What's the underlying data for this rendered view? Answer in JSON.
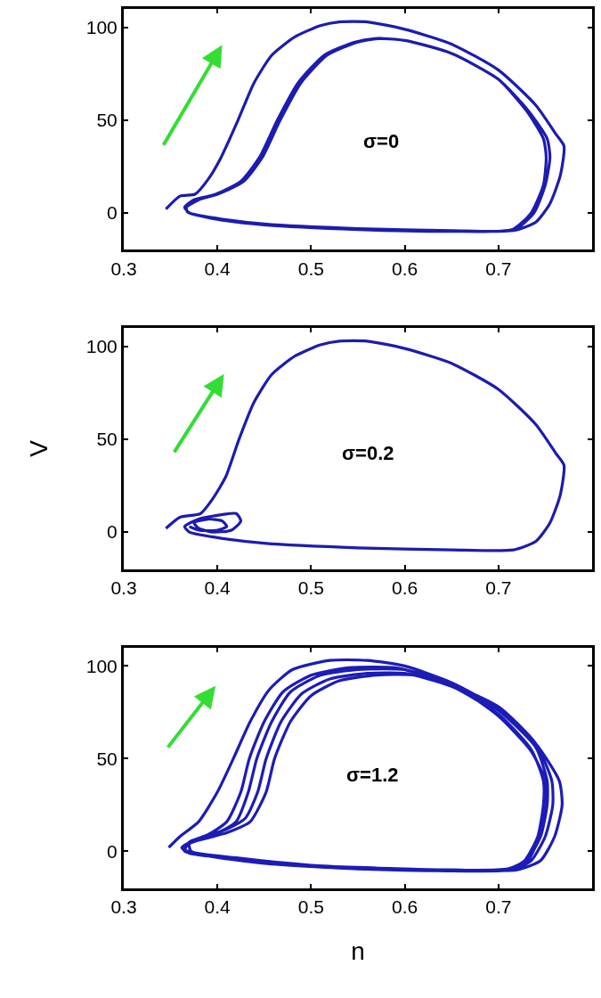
{
  "chart_data": [
    {
      "type": "line",
      "annotations": [
        "σ=0"
      ],
      "xlim": [
        0.3,
        0.8
      ],
      "ylim": [
        -20,
        110
      ],
      "xticks": [
        0.3,
        0.4,
        0.5,
        0.6,
        0.7
      ],
      "yticks": [
        0,
        50,
        100
      ],
      "marker": "none",
      "line_style": "solid",
      "series": [
        {
          "color": "#1c1cb0",
          "x": [
            0.345,
            0.36,
            0.376,
            0.39,
            0.404,
            0.422,
            0.439,
            0.458,
            0.483,
            0.51,
            0.53,
            0.56,
            0.6,
            0.65,
            0.7,
            0.74,
            0.762,
            0.77,
            0.766,
            0.755,
            0.74,
            0.716,
            0.65,
            0.55,
            0.45,
            0.4,
            0.37,
            0.365,
            0.375,
            0.398,
            0.425,
            0.445,
            0.464,
            0.486,
            0.514,
            0.546,
            0.568,
            0.6,
            0.65,
            0.7,
            0.73,
            0.748,
            0.751,
            0.748,
            0.735,
            0.715,
            0.65,
            0.55,
            0.45,
            0.4,
            0.368,
            0.367,
            0.38,
            0.4,
            0.428,
            0.448,
            0.467,
            0.489,
            0.517,
            0.549,
            0.571,
            0.6,
            0.65,
            0.7,
            0.732,
            0.752,
            0.755,
            0.75,
            0.738,
            0.718,
            0.7
          ],
          "values": [
            2,
            9,
            10,
            18,
            30,
            50,
            70,
            85,
            95,
            101,
            103,
            103,
            99,
            91,
            77,
            58,
            42,
            36,
            20,
            5,
            -5,
            -9.6,
            -9.6,
            -8.5,
            -6,
            -3,
            0,
            3,
            7,
            10,
            17,
            30,
            50,
            70,
            85,
            92,
            94,
            93,
            86,
            72,
            55,
            40,
            30,
            15,
            0,
            -9,
            -10,
            -9,
            -6.5,
            -3.5,
            0.5,
            3,
            7,
            10,
            17,
            30,
            50,
            70,
            85,
            92,
            94,
            93,
            86,
            72,
            55,
            40,
            30,
            15,
            0,
            -9,
            -10
          ]
        }
      ]
    },
    {
      "type": "line",
      "annotations": [
        "σ=0.2"
      ],
      "ylabel": "V",
      "xlim": [
        0.3,
        0.8
      ],
      "ylim": [
        -20,
        110
      ],
      "xticks": [
        0.3,
        0.4,
        0.5,
        0.6,
        0.7
      ],
      "yticks": [
        0,
        50,
        100
      ],
      "marker": "none",
      "line_style": "solid",
      "series": [
        {
          "color": "#1c1cb0",
          "x": [
            0.345,
            0.36,
            0.382,
            0.395,
            0.409,
            0.423,
            0.439,
            0.458,
            0.483,
            0.51,
            0.53,
            0.56,
            0.6,
            0.65,
            0.7,
            0.74,
            0.762,
            0.77,
            0.766,
            0.755,
            0.74,
            0.716,
            0.65,
            0.55,
            0.45,
            0.4,
            0.37,
            0.365,
            0.38,
            0.4,
            0.42,
            0.425,
            0.415,
            0.395,
            0.38,
            0.375,
            0.39,
            0.405,
            0.41,
            0.4,
            0.38,
            0.37
          ],
          "values": [
            2,
            8,
            10,
            18,
            30,
            50,
            70,
            85,
            95,
            101,
            103,
            103,
            99,
            91,
            77,
            58,
            42,
            36,
            20,
            5,
            -5,
            -9.6,
            -9.6,
            -8.5,
            -6,
            -3,
            0,
            3,
            7,
            9,
            10,
            6,
            1,
            0,
            2,
            5,
            7,
            6,
            3,
            1,
            1,
            3
          ]
        }
      ]
    },
    {
      "type": "line",
      "annotations": [
        "σ=1.2"
      ],
      "xlabel": "n",
      "xlim": [
        0.3,
        0.8
      ],
      "ylim": [
        -20,
        110
      ],
      "xticks": [
        0.3,
        0.4,
        0.5,
        0.6,
        0.7
      ],
      "yticks": [
        0,
        50,
        100
      ],
      "marker": "none",
      "line_style": "solid",
      "series": [
        {
          "color": "#1c1cb8",
          "x": [
            0.348,
            0.36,
            0.38,
            0.4,
            0.417,
            0.435,
            0.455,
            0.48,
            0.52,
            0.56,
            0.6,
            0.65,
            0.7,
            0.74,
            0.765,
            0.768,
            0.76,
            0.745,
            0.72,
            0.65,
            0.55,
            0.45,
            0.39,
            0.365,
            0.37,
            0.39,
            0.41,
            0.425,
            0.434,
            0.45,
            0.47,
            0.5,
            0.54,
            0.59,
            0.64,
            0.7,
            0.74,
            0.757,
            0.758,
            0.75,
            0.735,
            0.715,
            0.65,
            0.55,
            0.45,
            0.39,
            0.365,
            0.37,
            0.4,
            0.42,
            0.433,
            0.442,
            0.458,
            0.478,
            0.51,
            0.55,
            0.6,
            0.65,
            0.7,
            0.74,
            0.752,
            0.752,
            0.745,
            0.73,
            0.71,
            0.6,
            0.5,
            0.42,
            0.37,
            0.362,
            0.375,
            0.41,
            0.43,
            0.443,
            0.452,
            0.468,
            0.49,
            0.52,
            0.56,
            0.6,
            0.65,
            0.7,
            0.735,
            0.748,
            0.748,
            0.742,
            0.728,
            0.71,
            0.6,
            0.5,
            0.42,
            0.372,
            0.37,
            0.41,
            0.435,
            0.452,
            0.461,
            0.478,
            0.5,
            0.53,
            0.57,
            0.61,
            0.66,
            0.7,
            0.735,
            0.75,
            0.75,
            0.744,
            0.73,
            0.712
          ],
          "values": [
            2,
            8,
            16,
            32,
            50,
            70,
            87,
            98,
            103,
            103,
            100,
            91,
            77,
            58,
            38,
            25,
            8,
            -5,
            -10,
            -10,
            -9,
            -6,
            -2,
            1,
            5,
            9,
            16,
            32,
            50,
            70,
            86,
            95,
            99,
            99,
            92,
            78,
            58,
            38,
            25,
            8,
            -5,
            -10,
            -10.5,
            -9.5,
            -6.5,
            -2.5,
            0,
            5,
            10,
            16,
            32,
            50,
            70,
            86,
            95,
            98,
            98,
            90,
            76,
            56,
            38,
            25,
            8,
            -5,
            -10,
            -10,
            -8,
            -4,
            -1,
            2,
            6,
            12,
            18,
            32,
            50,
            70,
            85,
            93,
            96,
            96,
            89,
            74,
            55,
            38,
            25,
            8,
            -5,
            -9.5,
            -9.5,
            -7.5,
            -3.5,
            0,
            4,
            10,
            16,
            32,
            50,
            70,
            84,
            92,
            95,
            95,
            87,
            73,
            54,
            38,
            25,
            8,
            -6,
            -10
          ]
        }
      ]
    }
  ]
}
